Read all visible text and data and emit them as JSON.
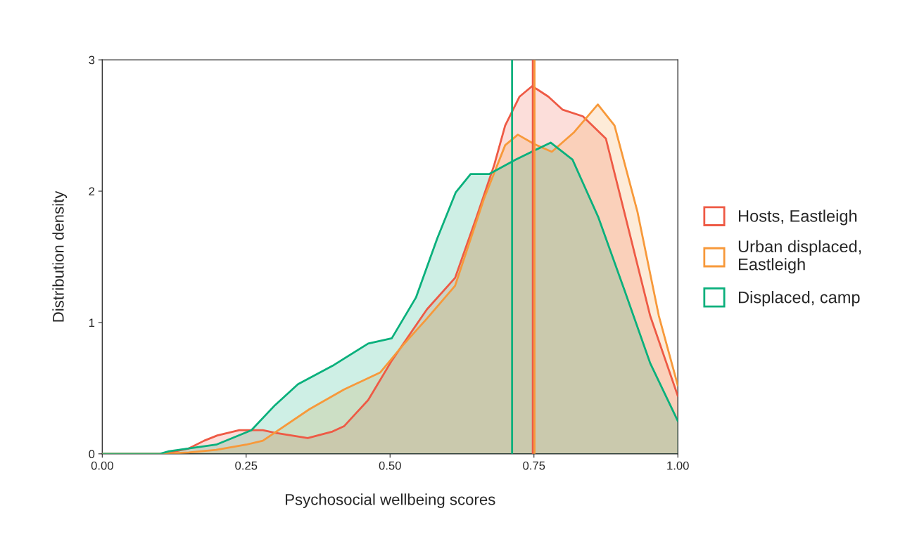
{
  "chart_data": {
    "type": "area",
    "xlabel": "Psychosocial wellbeing scores",
    "ylabel": "Distribution density",
    "xlim": [
      0,
      1
    ],
    "ylim": [
      0,
      3
    ],
    "xticks": [
      {
        "value": 0,
        "label": "0.00"
      },
      {
        "value": 0.25,
        "label": "0.25"
      },
      {
        "value": 0.5,
        "label": "0.50"
      },
      {
        "value": 0.75,
        "label": "0.75"
      },
      {
        "value": 1,
        "label": "1.00"
      }
    ],
    "yticks": [
      0,
      1,
      2,
      3
    ],
    "grid": false,
    "legend": "right",
    "series": [
      {
        "name": "Hosts, Eastleigh",
        "color": "#ee5a45",
        "x": [
          0,
          0.1,
          0.116,
          0.15,
          0.177,
          0.2,
          0.238,
          0.279,
          0.3,
          0.357,
          0.4,
          0.42,
          0.462,
          0.503,
          0.564,
          0.613,
          0.65,
          0.681,
          0.7,
          0.725,
          0.747,
          0.775,
          0.8,
          0.835,
          0.875,
          0.907,
          0.952,
          1.0
        ],
        "values": [
          0,
          0,
          0.01,
          0.04,
          0.1,
          0.14,
          0.18,
          0.18,
          0.16,
          0.12,
          0.17,
          0.21,
          0.41,
          0.71,
          1.1,
          1.34,
          1.8,
          2.2,
          2.5,
          2.72,
          2.8,
          2.72,
          2.62,
          2.57,
          2.4,
          1.84,
          1.05,
          0.44
        ]
      },
      {
        "name": "Urban displaced,\nEastleigh",
        "color": "#f7993a",
        "x": [
          0,
          0.1,
          0.15,
          0.198,
          0.25,
          0.279,
          0.36,
          0.42,
          0.483,
          0.523,
          0.564,
          0.613,
          0.663,
          0.7,
          0.722,
          0.75,
          0.781,
          0.82,
          0.861,
          0.89,
          0.93,
          0.967,
          1.0
        ],
        "values": [
          0,
          0,
          0.01,
          0.03,
          0.07,
          0.1,
          0.34,
          0.49,
          0.62,
          0.83,
          1.03,
          1.28,
          1.94,
          2.35,
          2.43,
          2.36,
          2.3,
          2.45,
          2.66,
          2.5,
          1.84,
          1.05,
          0.52
        ]
      },
      {
        "name": "Displaced, camp",
        "color": "#0ab07c",
        "x": [
          0,
          0.1,
          0.116,
          0.198,
          0.259,
          0.3,
          0.34,
          0.4,
          0.462,
          0.503,
          0.545,
          0.582,
          0.614,
          0.64,
          0.672,
          0.718,
          0.779,
          0.817,
          0.862,
          0.907,
          0.952,
          1.0
        ],
        "values": [
          0,
          0,
          0.02,
          0.07,
          0.18,
          0.37,
          0.53,
          0.67,
          0.84,
          0.88,
          1.19,
          1.64,
          1.99,
          2.13,
          2.13,
          2.24,
          2.37,
          2.24,
          1.8,
          1.25,
          0.69,
          0.25
        ]
      }
    ],
    "ref_lines": [
      {
        "axis": "x",
        "value": 0.712,
        "color": "#0ab07c"
      },
      {
        "axis": "x",
        "value": 0.748,
        "color": "#ee5a45"
      },
      {
        "axis": "x",
        "value": 0.751,
        "color": "#f7993a"
      }
    ]
  }
}
